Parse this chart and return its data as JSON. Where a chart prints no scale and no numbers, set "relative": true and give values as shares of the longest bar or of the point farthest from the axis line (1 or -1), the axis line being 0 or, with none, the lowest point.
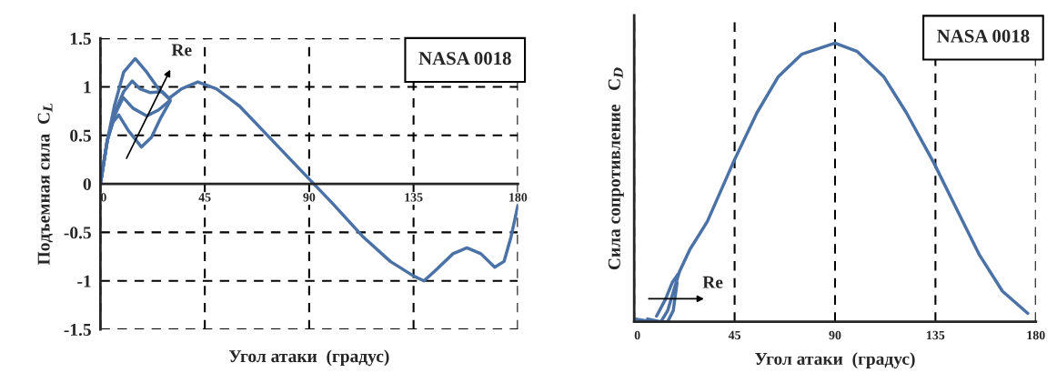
{
  "chart_data": [
    {
      "type": "line",
      "xlabel": "Угол атаки  (градус)",
      "ylabel": "Подъемная сила  C$_{L}$",
      "xlim": [
        0,
        180
      ],
      "ylim": [
        -1.5,
        1.5
      ],
      "xticks": [
        0,
        45,
        90,
        135,
        180
      ],
      "yticks": [
        -1.5,
        -1,
        -0.5,
        0,
        0.5,
        1,
        1.5
      ],
      "grid": true,
      "legend": false,
      "marker": "none",
      "line_style": "solid",
      "series": [
        {
          "color": "#4a72a6",
          "x": [
            0,
            3,
            6,
            10,
            13.7,
            17,
            21.6,
            26.7,
            30
          ],
          "values": [
            0,
            0.45,
            0.72,
            0.95,
            1.06,
            0.98,
            0.94,
            0.95,
            0.87
          ]
        },
        {
          "color": "#4a72a6",
          "x": [
            0,
            3,
            6,
            9.8,
            14,
            20,
            25,
            30
          ],
          "values": [
            0,
            0.45,
            0.7,
            0.89,
            0.78,
            0.7,
            0.76,
            0.86
          ]
        },
        {
          "color": "#4a72a6",
          "x": [
            0,
            3,
            5.5,
            7.9,
            12,
            17.7,
            22,
            26,
            30
          ],
          "values": [
            0,
            0.45,
            0.64,
            0.71,
            0.55,
            0.38,
            0.48,
            0.68,
            0.85
          ]
        },
        {
          "color": "#4a72a6",
          "x": [
            0,
            3,
            6,
            10,
            15,
            20,
            25,
            29.5,
            35,
            42,
            50,
            60,
            70,
            80,
            92,
            100,
            113,
            125,
            135,
            139.5,
            145,
            152,
            158,
            164,
            170,
            174,
            177,
            180
          ],
          "values": [
            0,
            0.45,
            0.8,
            1.15,
            1.29,
            1.15,
            0.98,
            0.88,
            0.98,
            1.05,
            0.98,
            0.8,
            0.55,
            0.3,
            0,
            -0.2,
            -0.54,
            -0.8,
            -0.95,
            -1.0,
            -0.88,
            -0.72,
            -0.66,
            -0.72,
            -0.86,
            -0.8,
            -0.55,
            -0.22
          ]
        }
      ],
      "annotations": [
        "Re",
        "NASA 0018"
      ]
    },
    {
      "type": "line",
      "relative": true,
      "xlabel": "Угол атаки  (градус)",
      "ylabel": "Сила сопротивление   C$_{D}$",
      "xlim": [
        0,
        180
      ],
      "xticks": [
        0,
        45,
        90,
        135,
        180
      ],
      "grid": "x",
      "legend": false,
      "marker": "none",
      "line_style": "solid",
      "series": [
        {
          "color": "#4a72a6",
          "x": [
            10,
            14,
            17,
            19.6
          ],
          "values": [
            0.02,
            0.08,
            0.14,
            0.17
          ]
        },
        {
          "color": "#4a72a6",
          "x": [
            6,
            12,
            15,
            17.5,
            19.2
          ],
          "values": [
            0.01,
            0,
            0,
            0.04,
            0.14
          ]
        },
        {
          "color": "#4a72a6",
          "x": [
            0,
            8,
            12,
            15,
            18,
            20.3,
            25,
            32.8,
            44.3,
            55,
            64.6,
            75,
            90,
            100,
            111.8,
            122,
            134.3,
            146,
            154.7,
            165,
            176.4
          ],
          "values": [
            0.01,
            0,
            0,
            0.04,
            0.12,
            0.18,
            0.26,
            0.36,
            0.57,
            0.75,
            0.88,
            0.96,
            1.0,
            0.97,
            0.88,
            0.75,
            0.57,
            0.38,
            0.24,
            0.11,
            0.03
          ]
        }
      ],
      "annotations": [
        "Re",
        "NASA 0018"
      ]
    }
  ]
}
